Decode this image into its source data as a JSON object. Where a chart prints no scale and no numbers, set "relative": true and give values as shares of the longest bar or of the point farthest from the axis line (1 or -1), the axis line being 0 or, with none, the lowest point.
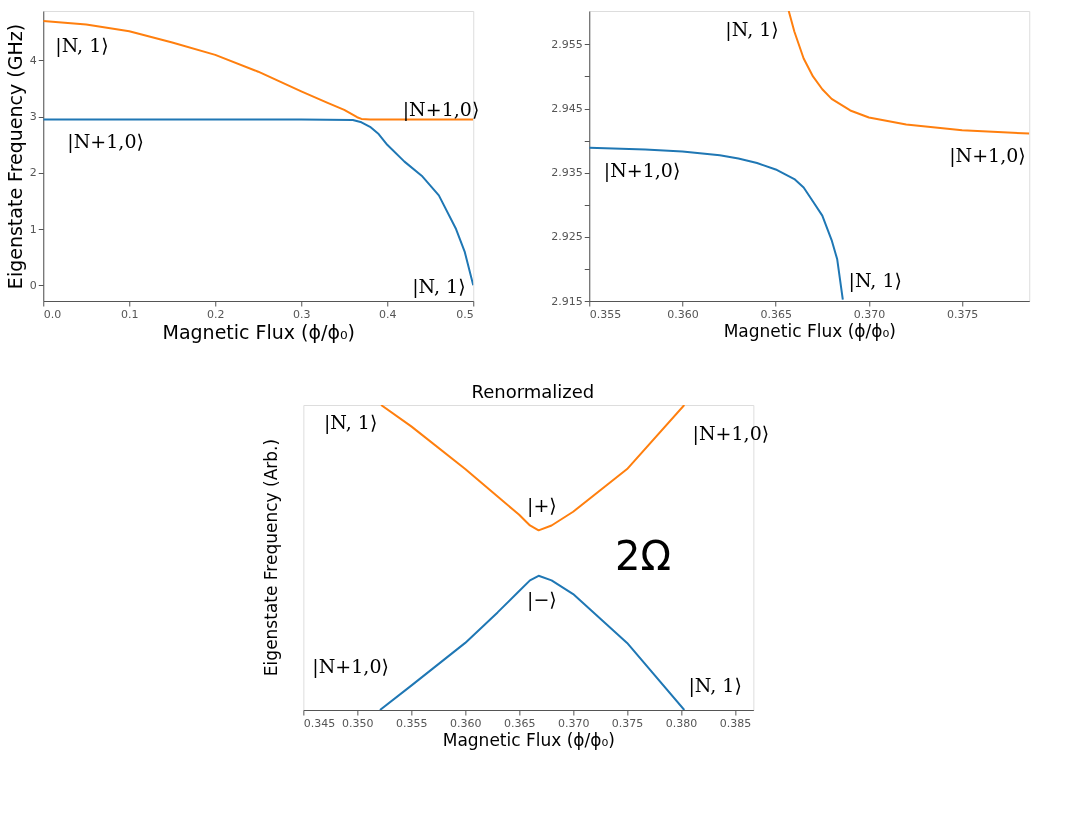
{
  "chart_data": [
    {
      "type": "line",
      "xlabel": "Magnetic Flux (ϕ/ϕ₀)",
      "ylabel": "Eigenstate Frequency (GHz)",
      "xlim": [
        0,
        0.5
      ],
      "ylim": [
        -0.28,
        4.88
      ],
      "xticks": [
        {
          "value": 0,
          "label": "0.0"
        },
        0.1,
        0.2,
        0.3,
        0.4,
        0.5
      ],
      "yticks": [
        0,
        1,
        2,
        3,
        4
      ],
      "grid": false,
      "legend": false,
      "series": [
        {
          "color": "#ff7f0e",
          "x": [
            0,
            0.05,
            0.1,
            0.15,
            0.2,
            0.25,
            0.3,
            0.33,
            0.35,
            0.365,
            0.37,
            0.38,
            0.4,
            0.5
          ],
          "values": [
            4.7,
            4.64,
            4.52,
            4.32,
            4.1,
            3.8,
            3.45,
            3.25,
            3.12,
            2.99,
            2.96,
            2.95,
            2.95,
            2.95
          ]
        },
        {
          "color": "#1f77b4",
          "x": [
            0,
            0.3,
            0.36,
            0.37,
            0.38,
            0.39,
            0.4,
            0.42,
            0.44,
            0.46,
            0.48,
            0.49,
            0.5
          ],
          "values": [
            2.95,
            2.95,
            2.94,
            2.9,
            2.82,
            2.69,
            2.5,
            2.2,
            1.95,
            1.6,
            1.0,
            0.6,
            0
          ]
        }
      ],
      "annotations": [
        "|N, 1⟩",
        "|N+1,0⟩",
        "|N+1,0⟩",
        "|N, 1⟩"
      ]
    },
    {
      "type": "line",
      "xlabel": "Magnetic Flux (ϕ/ϕ₀)",
      "xlim": [
        0.355,
        0.3786
      ],
      "ylim": [
        2.915,
        2.9602
      ],
      "xticks": [
        0.355,
        {
          "value": 0.36,
          "label": "0.360"
        },
        0.365,
        {
          "value": 0.37,
          "label": "0.370"
        },
        0.375
      ],
      "yticks": [
        2.915,
        {
          "value": 2.92,
          "label": null
        },
        2.925,
        {
          "value": 2.93,
          "label": null
        },
        2.935,
        {
          "value": 2.94,
          "label": null
        },
        2.945,
        {
          "value": 2.95,
          "label": null
        },
        2.955
      ],
      "grid": false,
      "legend": false,
      "series": [
        {
          "color": "#ff7f0e",
          "x": [
            0.3657,
            0.366,
            0.3665,
            0.367,
            0.3675,
            0.368,
            0.369,
            0.37,
            0.372,
            0.375,
            0.3786
          ],
          "values": [
            2.9602,
            2.957,
            2.9528,
            2.95,
            2.948,
            2.9465,
            2.9447,
            2.9436,
            2.9425,
            2.9416,
            2.9411
          ]
        },
        {
          "color": "#1f77b4",
          "x": [
            0.355,
            0.358,
            0.36,
            0.362,
            0.363,
            0.364,
            0.365,
            0.366,
            0.3665,
            0.367,
            0.3675,
            0.368,
            0.3683,
            0.3686
          ],
          "values": [
            2.9389,
            2.9386,
            2.9383,
            2.9377,
            2.9372,
            2.9365,
            2.9355,
            2.934,
            2.9327,
            2.9305,
            2.9283,
            2.9245,
            2.9215,
            2.9152
          ]
        }
      ],
      "annotations": [
        "|N, 1⟩",
        "|N+1,0⟩",
        "|N+1,0⟩",
        "|N, 1⟩"
      ]
    },
    {
      "type": "line",
      "relative": true,
      "xlabel": "Magnetic Flux (ϕ/ϕ₀)",
      "ylabel": "Eigenstate Frequency (Arb.)",
      "xlim": [
        0.345,
        0.3867
      ],
      "xticks": [
        0.345,
        {
          "value": 0.35,
          "label": "0.350"
        },
        0.355,
        {
          "value": 0.36,
          "label": "0.360"
        },
        0.365,
        {
          "value": 0.37,
          "label": "0.370"
        },
        0.375,
        {
          "value": 0.38,
          "label": "0.380"
        },
        0.385
      ],
      "grid": false,
      "legend": false,
      "series": [
        {
          "color": "#ff7f0e",
          "x": [
            0.3522,
            0.355,
            0.36,
            0.363,
            0.365,
            0.366,
            0.3668,
            0.368,
            0.37,
            0.375,
            0.3803
          ],
          "values": [
            1,
            0.93,
            0.79,
            0.7,
            0.64,
            0.605,
            0.589,
            0.605,
            0.65,
            0.79,
            1
          ]
        },
        {
          "color": "#1f77b4",
          "x": [
            0.3521,
            0.355,
            0.36,
            0.363,
            0.365,
            0.366,
            0.3668,
            0.368,
            0.37,
            0.375,
            0.3803
          ],
          "values": [
            0,
            0.08,
            0.22,
            0.32,
            0.39,
            0.425,
            0.44,
            0.425,
            0.38,
            0.22,
            0
          ]
        }
      ],
      "annotations": [
        "Renormalized",
        "|N, 1⟩",
        "|N+1,0⟩",
        "|+⟩",
        "2Ω",
        "|−⟩",
        "|N+1,0⟩",
        "|N, 1⟩"
      ]
    }
  ]
}
